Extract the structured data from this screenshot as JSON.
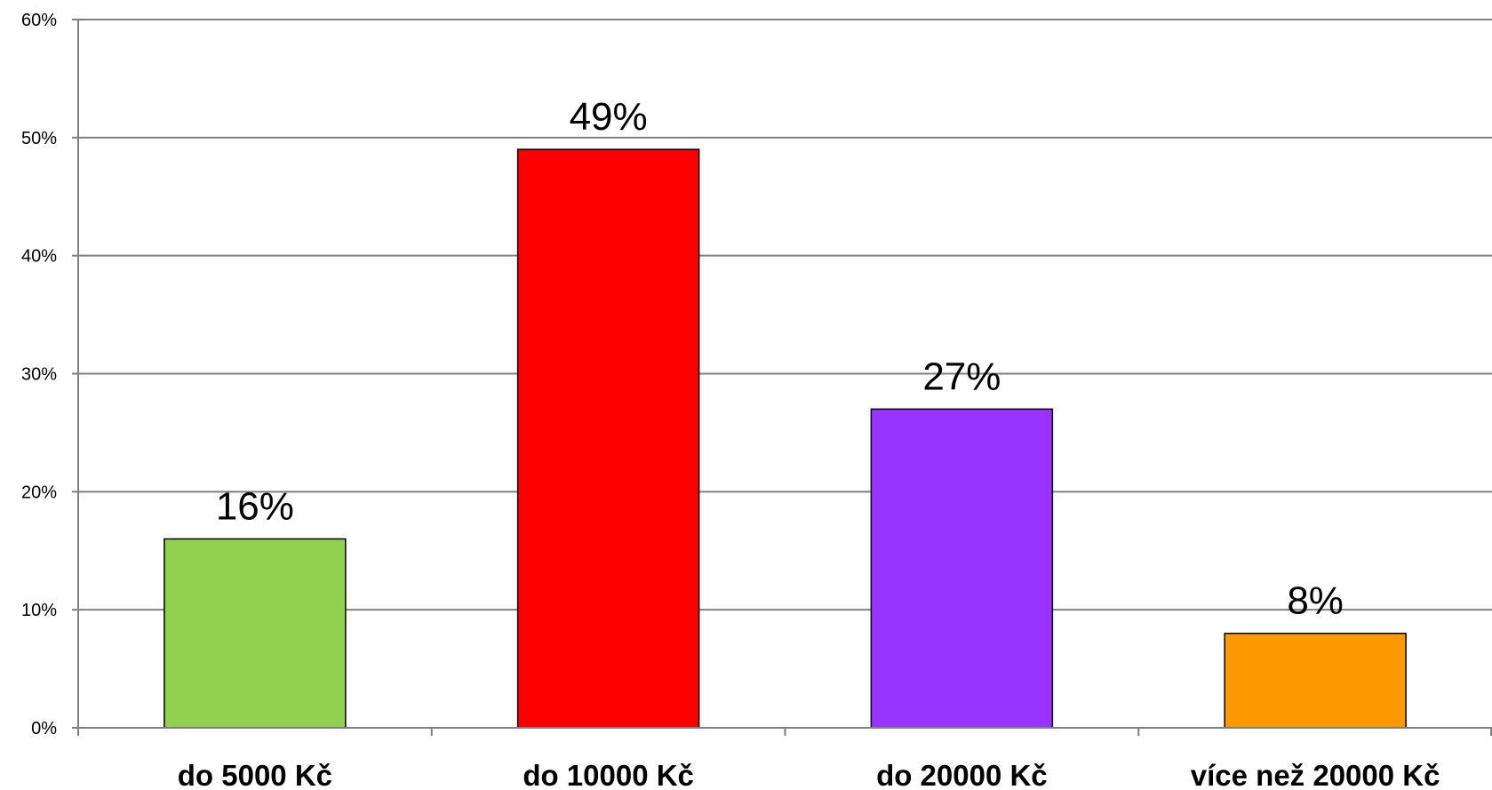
{
  "chart_data": {
    "type": "bar",
    "categories": [
      "do 5000 Kč",
      "do 10000 Kč",
      "do 20000 Kč",
      "více než 20000 Kč"
    ],
    "values": [
      16,
      49,
      27,
      8
    ],
    "value_labels": [
      "16%",
      "49%",
      "27%",
      "8%"
    ],
    "colors": [
      "#92d050",
      "#ff0000",
      "#9933ff",
      "#ff9900"
    ],
    "ylim": [
      0,
      60
    ],
    "yticks": [
      "0%",
      "10%",
      "20%",
      "30%",
      "40%",
      "50%",
      "60%"
    ],
    "grid": true,
    "legend": "none",
    "title": "",
    "xlabel": "",
    "ylabel": ""
  }
}
